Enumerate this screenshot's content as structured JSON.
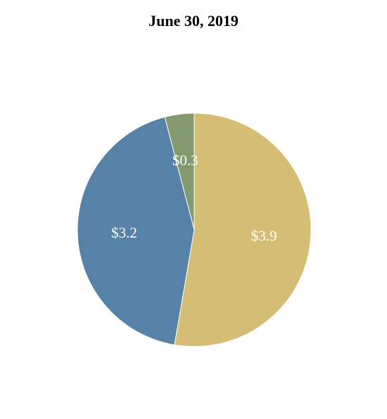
{
  "chart_data": {
    "type": "pie",
    "title": "June 30, 2019",
    "slices": [
      {
        "label": "$3.9",
        "value": 3.9,
        "color": "#D6BD76"
      },
      {
        "label": "$3.2",
        "value": 3.2,
        "color": "#5582A6"
      },
      {
        "label": "$0.3",
        "value": 0.3,
        "color": "#84996D"
      }
    ],
    "start": "top",
    "direction": "clockwise",
    "legend": "none"
  }
}
